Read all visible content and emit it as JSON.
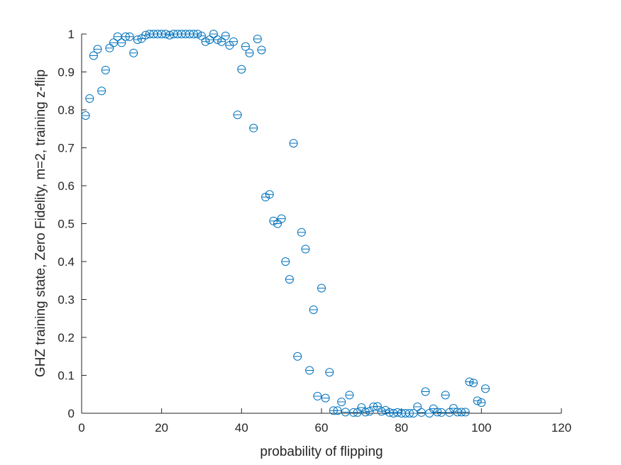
{
  "chart_data": {
    "type": "scatter",
    "title": "",
    "xlabel": "probability of flipping",
    "ylabel": "GHZ training state, Zero Fidelity, m=2, training z-flip",
    "xlim": [
      0,
      120
    ],
    "ylim": [
      0,
      1
    ],
    "xticks": [
      0,
      20,
      40,
      60,
      80,
      100,
      120
    ],
    "yticks": [
      0,
      0.1,
      0.2,
      0.3,
      0.4,
      0.5,
      0.6,
      0.7,
      0.8,
      0.9,
      1
    ],
    "xtick_labels": [
      "0",
      "20",
      "40",
      "60",
      "80",
      "100",
      "120"
    ],
    "ytick_labels": [
      "0",
      "0.1",
      "0.2",
      "0.3",
      "0.4",
      "0.5",
      "0.6",
      "0.7",
      "0.8",
      "0.9",
      "1"
    ],
    "grid": false,
    "legend": "none",
    "marker": "circle-with-horizontal-line",
    "color": "#0072BD",
    "axis_color": "#262626",
    "x": [
      1,
      2,
      3,
      4,
      5,
      6,
      7,
      8,
      9,
      10,
      11,
      12,
      13,
      14,
      15,
      16,
      17,
      18,
      19,
      20,
      21,
      22,
      23,
      24,
      25,
      26,
      27,
      28,
      29,
      30,
      31,
      32,
      33,
      34,
      35,
      36,
      37,
      38,
      39,
      40,
      41,
      42,
      43,
      44,
      45,
      46,
      47,
      48,
      49,
      50,
      51,
      52,
      53,
      54,
      55,
      56,
      57,
      58,
      59,
      60,
      61,
      62,
      63,
      64,
      65,
      66,
      67,
      68,
      69,
      70,
      71,
      72,
      73,
      74,
      75,
      76,
      77,
      78,
      79,
      80,
      81,
      82,
      83,
      84,
      85,
      86,
      87,
      88,
      89,
      90,
      91,
      92,
      93,
      94,
      95,
      96,
      97,
      98,
      99,
      100,
      101
    ],
    "y": [
      0.785,
      0.83,
      0.943,
      0.96,
      0.85,
      0.905,
      0.963,
      0.977,
      0.993,
      0.977,
      0.993,
      0.993,
      0.95,
      0.985,
      0.988,
      0.997,
      1.0,
      1.0,
      1.0,
      1.0,
      1.0,
      0.997,
      1.0,
      1.0,
      1.0,
      1.0,
      1.0,
      1.0,
      1.0,
      0.995,
      0.98,
      0.985,
      1.0,
      0.985,
      0.98,
      0.995,
      0.97,
      0.98,
      0.787,
      0.907,
      0.967,
      0.95,
      0.752,
      0.987,
      0.958,
      0.57,
      0.577,
      0.507,
      0.5,
      0.513,
      0.4,
      0.353,
      0.712,
      0.15,
      0.477,
      0.433,
      0.113,
      0.273,
      0.045,
      0.33,
      0.04,
      0.108,
      0.007,
      0.007,
      0.03,
      0.003,
      0.048,
      0.002,
      0.002,
      0.015,
      0.003,
      0.005,
      0.017,
      0.018,
      0.005,
      0.008,
      0.002,
      0.0,
      0.002,
      0.0,
      0.0,
      0.0,
      0.0,
      0.017,
      0.002,
      0.057,
      0.0,
      0.012,
      0.003,
      0.002,
      0.048,
      0.002,
      0.013,
      0.003,
      0.003,
      0.003,
      0.083,
      0.08,
      0.033,
      0.028,
      0.065
    ]
  }
}
